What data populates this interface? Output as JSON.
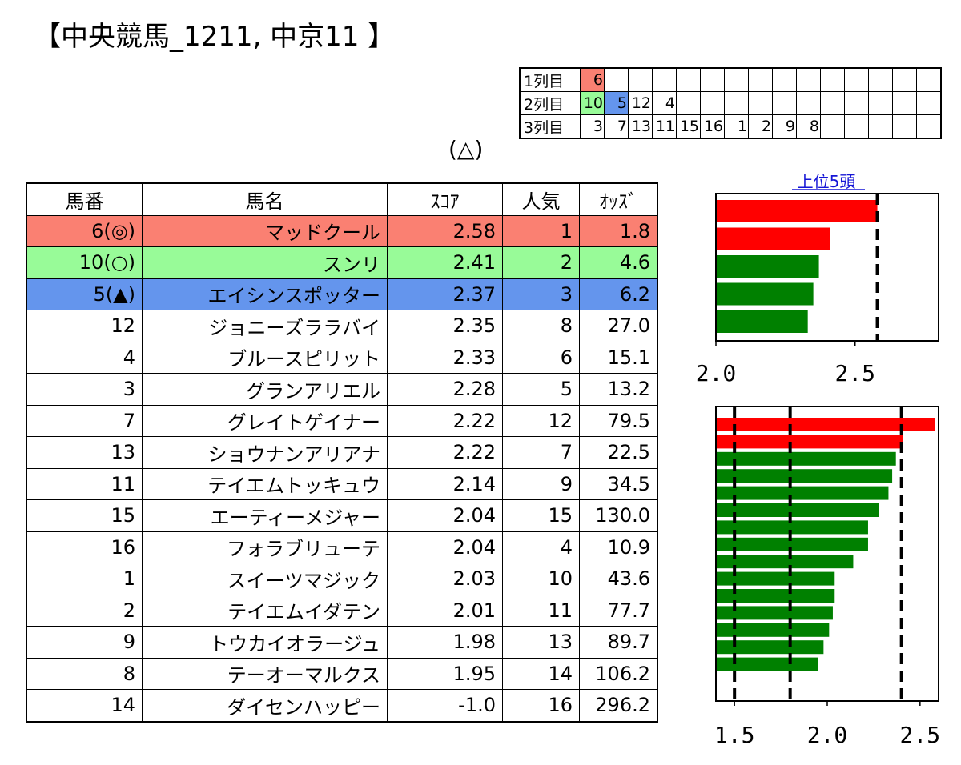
{
  "title": "【中央競馬_1211, 中京11 】",
  "triangle_label": "(△)",
  "colors": {
    "first": "#fa8072",
    "second": "#98fb98",
    "third": "#6495ed",
    "bar_top": "#ff0000",
    "bar_rest": "#008000"
  },
  "picks": [
    {
      "label": "1列目",
      "cells": [
        "6"
      ],
      "colors": [
        "first"
      ]
    },
    {
      "label": "2列目",
      "cells": [
        "10",
        "5",
        "12",
        "4"
      ],
      "colors": [
        "second",
        "third",
        "",
        ""
      ]
    },
    {
      "label": "3列目",
      "cells": [
        "3",
        "7",
        "13",
        "11",
        "15",
        "16",
        "1",
        "2",
        "9",
        "8"
      ],
      "colors": []
    }
  ],
  "table": {
    "headers": [
      "馬番",
      "馬名",
      "ｽｺｱ",
      "人気",
      "ｵｯｽﾞ"
    ],
    "rows": [
      {
        "num": "6(◎)",
        "name": "マッドクール",
        "score": "2.58",
        "pop": "1",
        "odds": "1.8",
        "hl": "first"
      },
      {
        "num": "10(○)",
        "name": "スンリ",
        "score": "2.41",
        "pop": "2",
        "odds": "4.6",
        "hl": "second"
      },
      {
        "num": "5(▲)",
        "name": "エイシンスポッター",
        "score": "2.37",
        "pop": "3",
        "odds": "6.2",
        "hl": "third"
      },
      {
        "num": "12",
        "name": "ジョニーズララバイ",
        "score": "2.35",
        "pop": "8",
        "odds": "27.0",
        "hl": ""
      },
      {
        "num": "4",
        "name": "ブルースピリット",
        "score": "2.33",
        "pop": "6",
        "odds": "15.1",
        "hl": ""
      },
      {
        "num": "3",
        "name": "グランアリエル",
        "score": "2.28",
        "pop": "5",
        "odds": "13.2",
        "hl": ""
      },
      {
        "num": "7",
        "name": "グレイトゲイナー",
        "score": "2.22",
        "pop": "12",
        "odds": "79.5",
        "hl": ""
      },
      {
        "num": "13",
        "name": "ショウナンアリアナ",
        "score": "2.22",
        "pop": "7",
        "odds": "22.5",
        "hl": ""
      },
      {
        "num": "11",
        "name": "テイエムトッキュウ",
        "score": "2.14",
        "pop": "9",
        "odds": "34.5",
        "hl": ""
      },
      {
        "num": "15",
        "name": "エーティーメジャー",
        "score": "2.04",
        "pop": "15",
        "odds": "130.0",
        "hl": ""
      },
      {
        "num": "16",
        "name": "フォラブリューテ",
        "score": "2.04",
        "pop": "4",
        "odds": "10.9",
        "hl": ""
      },
      {
        "num": "1",
        "name": "スイーツマジック",
        "score": "2.03",
        "pop": "10",
        "odds": "43.6",
        "hl": ""
      },
      {
        "num": "2",
        "name": "テイエムイダテン",
        "score": "2.01",
        "pop": "11",
        "odds": "77.7",
        "hl": ""
      },
      {
        "num": "9",
        "name": "トウカイオラージュ",
        "score": "1.98",
        "pop": "13",
        "odds": "89.7",
        "hl": ""
      },
      {
        "num": "8",
        "name": "テーオーマルクス",
        "score": "1.95",
        "pop": "14",
        "odds": "106.2",
        "hl": ""
      },
      {
        "num": "14",
        "name": "ダイセンハッピー",
        "score": "-1.0",
        "pop": "16",
        "odds": "296.2",
        "hl": ""
      }
    ]
  },
  "chart_data": [
    {
      "type": "bar",
      "orientation": "horizontal",
      "title": "上位5頭",
      "values": [
        2.58,
        2.41,
        2.37,
        2.35,
        2.33
      ],
      "bar_colors": [
        "bar_top",
        "bar_top",
        "bar_rest",
        "bar_rest",
        "bar_rest"
      ],
      "xlim": [
        2.0,
        2.8
      ],
      "xticks": [
        {
          "v": 2.0,
          "label": "2.0"
        },
        {
          "v": 2.5,
          "label": "2.5"
        }
      ],
      "ref_lines": [
        2.58
      ],
      "grid": false
    },
    {
      "type": "bar",
      "orientation": "horizontal",
      "title": "",
      "values": [
        2.58,
        2.41,
        2.37,
        2.35,
        2.33,
        2.28,
        2.22,
        2.22,
        2.14,
        2.04,
        2.04,
        2.03,
        2.01,
        1.98,
        1.95
      ],
      "bar_colors": [
        "bar_top",
        "bar_top",
        "bar_rest",
        "bar_rest",
        "bar_rest",
        "bar_rest",
        "bar_rest",
        "bar_rest",
        "bar_rest",
        "bar_rest",
        "bar_rest",
        "bar_rest",
        "bar_rest",
        "bar_rest",
        "bar_rest"
      ],
      "xlim": [
        1.4,
        2.6
      ],
      "xticks": [
        {
          "v": 1.5,
          "label": "1.5"
        },
        {
          "v": 2.0,
          "label": "2.0"
        },
        {
          "v": 2.5,
          "label": "2.5"
        }
      ],
      "ref_lines": [
        1.5,
        1.8,
        2.4
      ],
      "grid": false
    }
  ]
}
